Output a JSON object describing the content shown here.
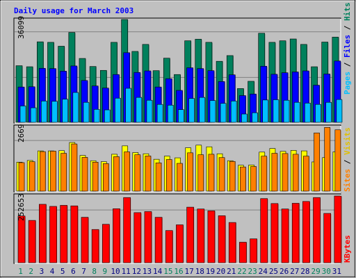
{
  "chart_data": [
    {
      "type": "bar",
      "title": "Daily usage for March 2003",
      "categories": [
        "1",
        "2",
        "3",
        "4",
        "5",
        "6",
        "7",
        "8",
        "9",
        "10",
        "11",
        "12",
        "13",
        "14",
        "15",
        "16",
        "17",
        "18",
        "19",
        "20",
        "21",
        "22",
        "23",
        "24",
        "25",
        "26",
        "27",
        "28",
        "29",
        "30",
        "31"
      ],
      "weekend_days": [
        "1",
        "2",
        "8",
        "9",
        "15",
        "16",
        "22",
        "23",
        "29",
        "30"
      ],
      "ylabel_top_value": "36099",
      "series": [
        {
          "name": "Hits",
          "color": "#00805c",
          "values": [
            21800,
            21400,
            31000,
            30800,
            29300,
            34600,
            24600,
            21500,
            20000,
            30800,
            39600,
            27300,
            30000,
            19900,
            24700,
            18400,
            31400,
            32000,
            30800,
            23500,
            25700,
            13000,
            15800,
            34300,
            30800,
            31400,
            32100,
            30000,
            21400,
            30900,
            32800
          ]
        },
        {
          "name": "Files",
          "color": "#0000ff",
          "values": [
            13600,
            13700,
            20800,
            20700,
            19700,
            21700,
            16100,
            14000,
            13200,
            18400,
            26800,
            19200,
            19800,
            13600,
            16800,
            12300,
            21000,
            20700,
            19900,
            15700,
            18300,
            10300,
            10900,
            21600,
            18500,
            19100,
            19400,
            19800,
            14300,
            18600,
            23600
          ]
        },
        {
          "name": "Pages",
          "color": "#00bfff",
          "values": [
            6300,
            5600,
            8200,
            8100,
            8900,
            11500,
            7700,
            5000,
            4800,
            9300,
            13100,
            9600,
            8500,
            6900,
            6600,
            4900,
            9200,
            9600,
            8400,
            7300,
            8200,
            3200,
            3700,
            8600,
            8700,
            8500,
            7700,
            7400,
            6900,
            7700,
            8800
          ]
        }
      ]
    },
    {
      "type": "bar",
      "ylabel_top_value": "2669",
      "series": [
        {
          "name": "Visits",
          "color": "#ffff00",
          "values": [
            1210,
            1280,
            1680,
            1680,
            1690,
            2030,
            1490,
            1270,
            1230,
            1540,
            1890,
            1610,
            1560,
            1330,
            1460,
            1390,
            1810,
            1920,
            1850,
            1560,
            1270,
            1080,
            1090,
            1630,
            1780,
            1660,
            1700,
            1680,
            1220,
            1400,
            1640
          ]
        },
        {
          "name": "Sites",
          "color": "#ff8000",
          "values": [
            1190,
            1230,
            1650,
            1670,
            1580,
            1970,
            1410,
            1210,
            1150,
            1440,
            1640,
            1520,
            1470,
            1180,
            1320,
            1160,
            1600,
            1520,
            1540,
            1400,
            1240,
            1010,
            1030,
            1460,
            1580,
            1570,
            1540,
            1460,
            2430,
            2660,
            2560
          ]
        }
      ]
    },
    {
      "type": "bar",
      "ylabel_top_value": "252653",
      "series": [
        {
          "name": "KBytes",
          "color": "#ff0000",
          "values": [
            180000,
            163000,
            225000,
            217000,
            221000,
            219000,
            175000,
            128000,
            148000,
            208000,
            251000,
            193000,
            197000,
            175000,
            124000,
            146000,
            214000,
            207000,
            200000,
            181000,
            155000,
            79000,
            92000,
            247000,
            228000,
            207000,
            229000,
            236000,
            251000,
            190000,
            257000
          ]
        }
      ]
    }
  ],
  "legend": {
    "hits": "Hits",
    "files": "Files",
    "pages": "Pages",
    "visits": "Visits",
    "sites": "Sites",
    "kbytes": "KBytes",
    "sep": " / "
  },
  "colors": {
    "background": "#c0c0c0",
    "plot_bg": "#c0c0c0",
    "title": "#0000ff",
    "weekday_label": "#000080",
    "weekend_label": "#00805c",
    "grid": "#808080"
  }
}
